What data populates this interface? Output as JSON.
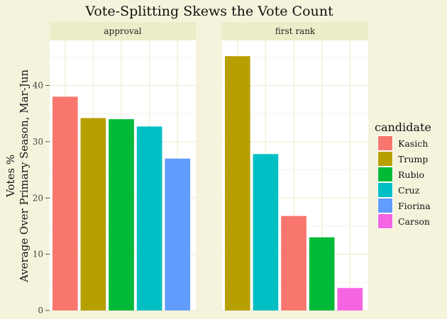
{
  "chart_data": {
    "type": "bar",
    "title": "Vote-Splitting Skews the Vote Count",
    "ylabel": [
      "Votes %",
      "Average Over Primary Season, Mar-Jun"
    ],
    "xlabel": "",
    "ylim": [
      0,
      48
    ],
    "yticks": [
      0,
      10,
      20,
      30,
      40
    ],
    "grid": true,
    "legend_position": "right",
    "legend": {
      "title": "candidate",
      "entries": [
        {
          "name": "Kasich",
          "color": "#F8766D"
        },
        {
          "name": "Trump",
          "color": "#B79F00"
        },
        {
          "name": "Rubio",
          "color": "#00BA38"
        },
        {
          "name": "Cruz",
          "color": "#00BFC4"
        },
        {
          "name": "Fiorina",
          "color": "#619CFF"
        },
        {
          "name": "Carson",
          "color": "#F564E3"
        }
      ]
    },
    "facets": [
      {
        "label": "approval",
        "bars": [
          {
            "candidate": "Kasich",
            "value": 38.0
          },
          {
            "candidate": "Trump",
            "value": 34.2
          },
          {
            "candidate": "Rubio",
            "value": 34.0
          },
          {
            "candidate": "Cruz",
            "value": 32.7
          },
          {
            "candidate": "Fiorina",
            "value": 27.0
          }
        ]
      },
      {
        "label": "first rank",
        "bars": [
          {
            "candidate": "Trump",
            "value": 45.2
          },
          {
            "candidate": "Cruz",
            "value": 27.8
          },
          {
            "candidate": "Kasich",
            "value": 16.8
          },
          {
            "candidate": "Rubio",
            "value": 13.0
          },
          {
            "candidate": "Carson",
            "value": 4.0
          }
        ]
      }
    ]
  }
}
